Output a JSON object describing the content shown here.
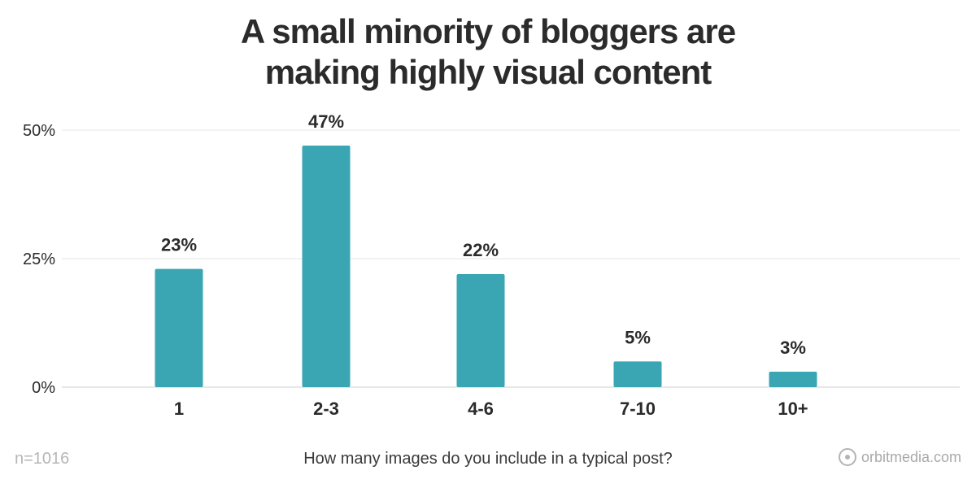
{
  "chart_data": {
    "type": "bar",
    "title_lines": [
      "A small minority of bloggers are",
      "making highly visual content"
    ],
    "categories": [
      "1",
      "2-3",
      "4-6",
      "7-10",
      "10+"
    ],
    "values": [
      23,
      47,
      22,
      5,
      3
    ],
    "value_labels": [
      "23%",
      "47%",
      "22%",
      "5%",
      "3%"
    ],
    "ylim": [
      0,
      50
    ],
    "yticks": [
      0,
      25,
      50
    ],
    "ytick_labels": [
      "0%",
      "25%",
      "50%"
    ],
    "xlabel": "How many images do you include in a typical post?",
    "ylabel": "",
    "grid": true,
    "bar_color": "#3aa6b3"
  },
  "footer": {
    "sample_size": "n=1016",
    "brand": "orbitmedia.com"
  }
}
